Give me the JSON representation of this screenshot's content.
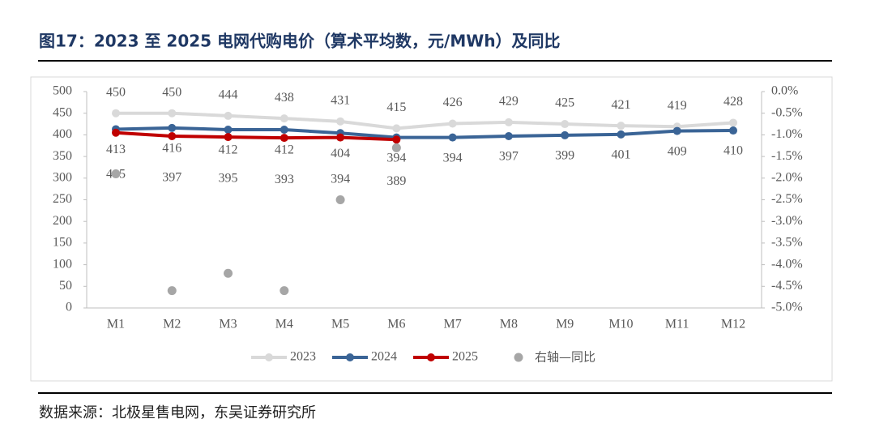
{
  "chart_data": {
    "type": "line",
    "title": "图17：2023 至 2025 电网代购电价（算术平均数，元/MWh）及同比",
    "source": "数据来源：北极星售电网，东吴证券研究所",
    "categories": [
      "M1",
      "M2",
      "M3",
      "M4",
      "M5",
      "M6",
      "M7",
      "M8",
      "M9",
      "M10",
      "M11",
      "M12"
    ],
    "series": [
      {
        "name": "2023",
        "color": "#d9d9d9",
        "values": [
          450,
          450,
          444,
          438,
          431,
          415,
          426,
          429,
          425,
          421,
          419,
          428
        ]
      },
      {
        "name": "2024",
        "color": "#3a6496",
        "values": [
          413,
          416,
          412,
          412,
          404,
          394,
          394,
          397,
          399,
          401,
          409,
          410
        ]
      },
      {
        "name": "2025",
        "color": "#c00000",
        "values": [
          405,
          397,
          395,
          393,
          394,
          389,
          null,
          null,
          null,
          null,
          null,
          null
        ]
      },
      {
        "name": "右轴—同比",
        "color": "#a6a6a6",
        "type": "scatter",
        "axis": "y2",
        "values": [
          -1.9,
          -4.6,
          -4.2,
          -4.6,
          -2.5,
          -1.3,
          null,
          null,
          null,
          null,
          null,
          null
        ]
      }
    ],
    "ylim": [
      0,
      500
    ],
    "yticks": [
      0,
      50,
      100,
      150,
      200,
      250,
      300,
      350,
      400,
      450,
      500
    ],
    "y2lim": [
      -5,
      0
    ],
    "y2ticks": [
      {
        "value": 0,
        "label": "0.0%"
      },
      {
        "value": -0.5,
        "label": "-0.5%"
      },
      {
        "value": -1,
        "label": "-1.0%"
      },
      {
        "value": -1.5,
        "label": "-1.5%"
      },
      {
        "value": -2,
        "label": "-2.0%"
      },
      {
        "value": -2.5,
        "label": "-2.5%"
      },
      {
        "value": -3,
        "label": "-3.0%"
      },
      {
        "value": -3.5,
        "label": "-3.5%"
      },
      {
        "value": -4,
        "label": "-4.0%"
      },
      {
        "value": -4.5,
        "label": "-4.5%"
      },
      {
        "value": -5,
        "label": "-5.0%"
      }
    ],
    "legend": "bottom"
  }
}
